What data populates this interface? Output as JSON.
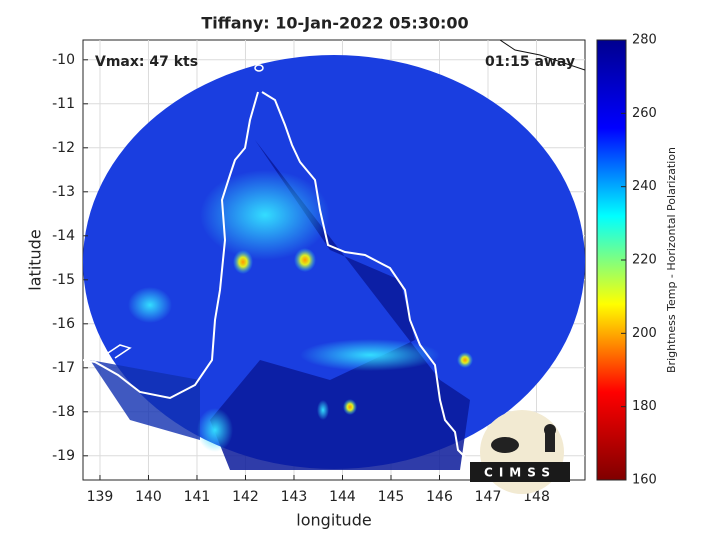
{
  "chart_data": {
    "type": "map",
    "title": "Tiffany: 10-Jan-2022 05:30:00",
    "annotations": [
      "Vmax: 47 kts",
      "01:15 away"
    ],
    "x_label": "longitude",
    "y_label": "latitude",
    "xlim": [
      138.65,
      149
    ],
    "xticks": [
      139,
      140,
      141,
      142,
      143,
      144,
      145,
      146,
      147,
      148
    ],
    "ylim": [
      -19.55,
      -9.55
    ],
    "yticks": [
      -10,
      -11,
      -12,
      -13,
      -14,
      -15,
      -16,
      -17,
      -18,
      -19
    ],
    "grid": true,
    "colorbar": {
      "label": "Brightness Temp - Horizontal Polarization",
      "lim": [
        160,
        280
      ],
      "ticks": [
        160,
        180,
        200,
        220,
        240,
        260,
        280
      ],
      "colormap": [
        "#00008f",
        "#0000ff",
        "#00ffff",
        "#ffff00",
        "#ff0000",
        "#800000"
      ]
    },
    "logo_text": "CIMSS"
  }
}
